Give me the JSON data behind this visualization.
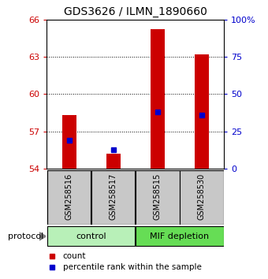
{
  "title": "GDS3626 / ILMN_1890660",
  "samples": [
    "GSM258516",
    "GSM258517",
    "GSM258515",
    "GSM258530"
  ],
  "bar_base": 54.0,
  "bar_tops": [
    58.3,
    55.2,
    65.2,
    63.2
  ],
  "percentile_vals": [
    56.3,
    55.5,
    58.6,
    58.3
  ],
  "ylim_left": [
    54,
    66
  ],
  "ylim_right": [
    0,
    100
  ],
  "yticks_left": [
    54,
    57,
    60,
    63,
    66
  ],
  "yticks_right": [
    0,
    25,
    50,
    75,
    100
  ],
  "bar_color": "#cc0000",
  "percentile_color": "#0000cc",
  "title_fontsize": 10,
  "legend_count_label": "count",
  "legend_pct_label": "percentile rank within the sample",
  "protocol_label": "protocol",
  "group_color_control": "#b8f0b8",
  "group_color_mif": "#66dd55",
  "sample_box_color": "#c8c8c8",
  "bar_width": 0.32
}
